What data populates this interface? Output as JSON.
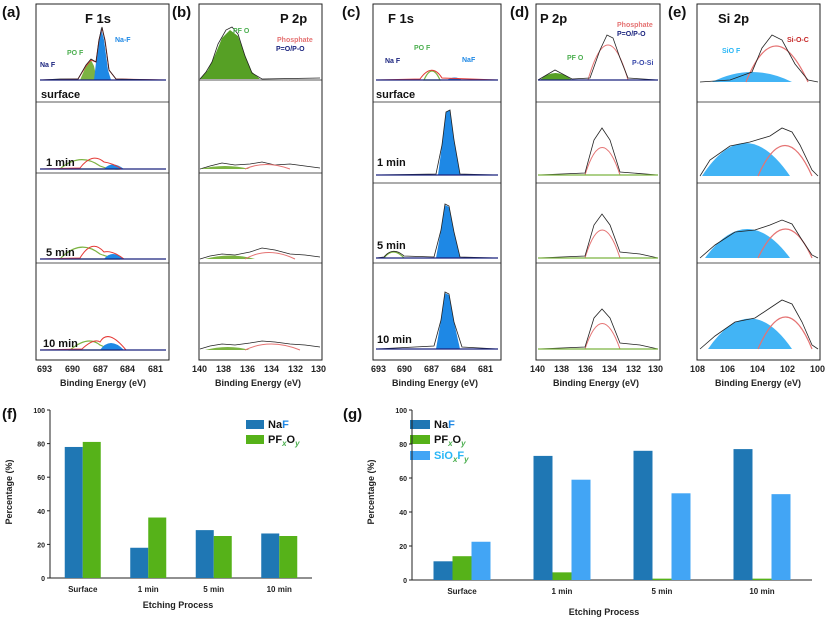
{
  "xps": {
    "panels": [
      {
        "label": "(a)",
        "title": "F 1s",
        "xlabel": "Binding Energy (eV)",
        "ticks": [
          "693",
          "690",
          "687",
          "684",
          "681"
        ],
        "annotations": [
          {
            "text": "Na F",
            "sub": "x",
            "sub2": "y",
            "color": "#1a237e"
          },
          {
            "text": "PO F",
            "color": "#4caf50"
          },
          {
            "text": "Na-F",
            "color": "#1e88e5"
          }
        ],
        "rows": [
          "surface",
          "1 min",
          "5 min",
          "10 min"
        ]
      },
      {
        "label": "(b)",
        "title": "P 2p",
        "xlabel": "Binding Energy (eV)",
        "ticks": [
          "140",
          "138",
          "136",
          "134",
          "132",
          "130"
        ],
        "annotations": [
          {
            "text": "PF O",
            "color": "#4caf50"
          },
          {
            "text": "Phosphate",
            "color": "#e57373"
          },
          {
            "text": "P=O/P-O",
            "color": "#1a237e"
          }
        ]
      },
      {
        "label": "(c)",
        "title": "F 1s",
        "xlabel": "Binding Energy (eV)",
        "ticks": [
          "693",
          "690",
          "687",
          "684",
          "681"
        ],
        "annotations": [
          {
            "text": "Na F",
            "color": "#1a237e"
          },
          {
            "text": "PO F",
            "color": "#4caf50"
          },
          {
            "text": "NaF",
            "color": "#1e88e5"
          }
        ],
        "rows": [
          "surface",
          "1 min",
          "5 min",
          "10 min"
        ]
      },
      {
        "label": "(d)",
        "title": "P 2p",
        "xlabel": "Binding Energy (eV)",
        "ticks": [
          "140",
          "138",
          "136",
          "134",
          "132",
          "130"
        ],
        "annotations": [
          {
            "text": "PF O",
            "color": "#4caf50"
          },
          {
            "text": "Phosphate",
            "color": "#e57373"
          },
          {
            "text": "P=O/P-O",
            "color": "#1a237e"
          },
          {
            "text": "P-O-Si",
            "color": "#3949ab"
          }
        ]
      },
      {
        "label": "(e)",
        "title": "Si 2p",
        "xlabel": "Binding Energy (eV)",
        "ticks": [
          "108",
          "106",
          "104",
          "102",
          "100"
        ],
        "annotations": [
          {
            "text": "SiO F",
            "color": "#29b6f6"
          },
          {
            "text": "Si-O-C",
            "color": "#c62828"
          }
        ]
      }
    ]
  },
  "chart_data": [
    {
      "panel": "(f)",
      "type": "bar",
      "title": "",
      "xlabel": "Etching Process",
      "ylabel": "Percentage (%)",
      "ylim": [
        0,
        100
      ],
      "yticks": [
        "0",
        "20",
        "40",
        "60",
        "80",
        "100"
      ],
      "categories": [
        "Surface",
        "1 min",
        "5 min",
        "10 min"
      ],
      "series": [
        {
          "name": "NaF",
          "color": "#1f77b4",
          "values": [
            78,
            18,
            28.5,
            26.5
          ]
        },
        {
          "name": "PFxOy",
          "color": "#56b219",
          "values": [
            81,
            36,
            25,
            25
          ]
        }
      ],
      "legend": [
        {
          "pre": "Na",
          "mid": "F",
          "subs": ""
        },
        {
          "pre": "PF",
          "mid": "O",
          "subs": "xy"
        }
      ]
    },
    {
      "panel": "(g)",
      "type": "bar",
      "title": "",
      "xlabel": "Etching Process",
      "ylabel": "Percentage (%)",
      "ylim": [
        0,
        100
      ],
      "yticks": [
        "0",
        "20",
        "40",
        "60",
        "80",
        "100"
      ],
      "categories": [
        "Surface",
        "1 min",
        "5 min",
        "10 min"
      ],
      "series": [
        {
          "name": "NaF",
          "color": "#1f77b4",
          "values": [
            11,
            73,
            76,
            77
          ]
        },
        {
          "name": "PFxOy",
          "color": "#56b219",
          "values": [
            14,
            4.5,
            0.8,
            0.8
          ]
        },
        {
          "name": "SiOxFy",
          "color": "#42a5f5",
          "values": [
            22.5,
            59,
            51,
            50.5
          ]
        }
      ]
    }
  ],
  "legend_text": {
    "naf_na": "Na",
    "naf_f": "F",
    "pfo_pf": "PF",
    "pfo_o": "O",
    "sub_x": "x",
    "sub_y": "y",
    "siof_si": "SiO",
    "siof_f": "F"
  }
}
